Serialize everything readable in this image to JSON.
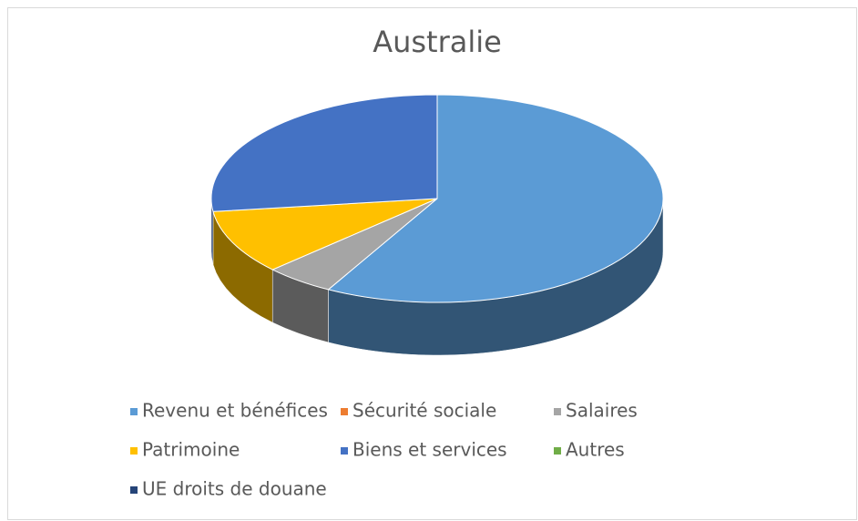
{
  "chart_data": {
    "type": "pie",
    "title": "Australie",
    "categories": [
      "Revenu et bénéfices",
      "Sécurité sociale",
      "Salaires",
      "Patrimoine",
      "Biens et services",
      "Autres",
      "UE droits de douane"
    ],
    "values": [
      58,
      0,
      5,
      10,
      27,
      0,
      0
    ],
    "colors": [
      "#5b9bd5",
      "#ed7d31",
      "#a5a5a5",
      "#ffc000",
      "#4472c4",
      "#70ad47",
      "#264478"
    ],
    "legend": "bottom"
  }
}
